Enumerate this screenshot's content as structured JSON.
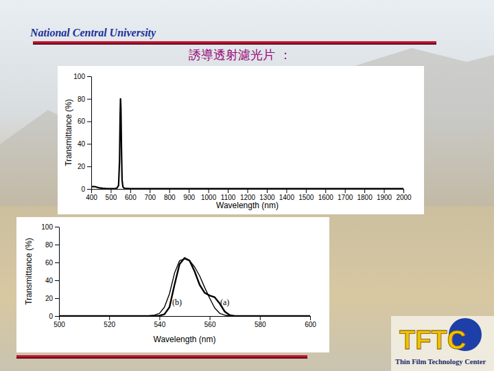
{
  "header": {
    "institution": "National Central University",
    "title": "誘導透射濾光片 ：",
    "logo": "TFTC",
    "logo_caption": "Thin Film Technology Center"
  },
  "chart_data": [
    {
      "type": "line",
      "x_label": "Wavelength (nm)",
      "y_label": "Transmittance (%)",
      "x": [
        400,
        420,
        440,
        460,
        480,
        500,
        520,
        530,
        540,
        545,
        548,
        550,
        552,
        555,
        558,
        562,
        570,
        600,
        700,
        800,
        900,
        1000,
        1200,
        1400,
        1600,
        1800,
        2000
      ],
      "series": [
        {
          "color": "#000000",
          "values": [
            2,
            2,
            1,
            0.5,
            0.3,
            0.3,
            0.3,
            0.5,
            3,
            25,
            65,
            80,
            72,
            35,
            8,
            2,
            0.5,
            0.3,
            0.3,
            0.2,
            0.2,
            0.2,
            0.2,
            0.2,
            0.2,
            0.2,
            0.2
          ]
        }
      ],
      "xlim": [
        400,
        2000
      ],
      "xticks": [
        400,
        500,
        600,
        700,
        800,
        900,
        1000,
        1100,
        1200,
        1300,
        1400,
        1500,
        1600,
        1700,
        1800,
        1900,
        2000
      ],
      "ylim": [
        0,
        100
      ],
      "yticks": [
        0,
        20,
        40,
        60,
        80,
        100
      ]
    },
    {
      "type": "line",
      "x_label": "Wavelength (nm)",
      "y_label": "Transmittance (%)",
      "x": [
        500,
        520,
        530,
        535,
        538,
        540,
        542,
        544,
        546,
        548,
        550,
        552,
        554,
        556,
        558,
        560,
        562,
        564,
        566,
        568,
        570,
        580,
        600
      ],
      "series": [
        {
          "color": "#000000",
          "values": [
            0,
            0,
            0,
            0,
            0,
            0.5,
            2,
            10,
            35,
            58,
            65,
            62,
            50,
            35,
            26,
            23,
            21,
            14,
            5,
            1,
            0,
            0,
            0
          ]
        },
        {
          "color": "#000000",
          "values": [
            0,
            0,
            0,
            0,
            1,
            3,
            10,
            25,
            48,
            62,
            64,
            62,
            55,
            45,
            32,
            20,
            9,
            3,
            1,
            0,
            0,
            0,
            0
          ]
        }
      ],
      "annotations": [
        {
          "text": "(a)",
          "x": 566,
          "y": 12
        },
        {
          "text": "(b)",
          "x": 547,
          "y": 12
        }
      ],
      "xlim": [
        500,
        600
      ],
      "xticks": [
        500,
        520,
        540,
        560,
        580,
        600
      ],
      "ylim": [
        0,
        100
      ],
      "yticks": [
        0,
        20,
        40,
        60,
        80,
        100
      ]
    }
  ]
}
